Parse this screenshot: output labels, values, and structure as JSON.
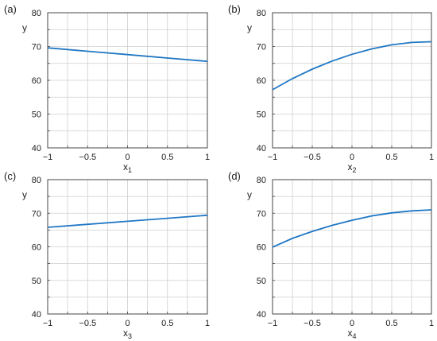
{
  "chart_data": [
    {
      "panel": "(a)",
      "type": "line",
      "xlabel": "x",
      "xlabel_sub": "1",
      "ylabel": "y",
      "xlim": [
        -1,
        1
      ],
      "ylim": [
        40,
        80
      ],
      "xticks": [
        -1,
        -0.5,
        0,
        0.5,
        1
      ],
      "xtick_labels": [
        "−1",
        "−0.5",
        "0",
        "0.5",
        "1"
      ],
      "yticks": [
        40,
        50,
        60,
        70,
        80
      ],
      "ytick_labels": [
        "40",
        "50",
        "60",
        "70",
        "80"
      ],
      "grid": true,
      "series": [
        {
          "color": "#1f77c4",
          "x": [
            -1,
            -0.5,
            0,
            0.5,
            1
          ],
          "y": [
            69.6,
            68.6,
            67.6,
            66.6,
            65.6
          ]
        }
      ]
    },
    {
      "panel": "(b)",
      "type": "line",
      "xlabel": "x",
      "xlabel_sub": "2",
      "ylabel": "y",
      "xlim": [
        -1,
        1
      ],
      "ylim": [
        40,
        80
      ],
      "xticks": [
        -1,
        -0.5,
        0,
        0.5,
        1
      ],
      "xtick_labels": [
        "−1",
        "−0.5",
        "0",
        "0.5",
        "1"
      ],
      "yticks": [
        40,
        50,
        60,
        70,
        80
      ],
      "ytick_labels": [
        "40",
        "50",
        "60",
        "70",
        "80"
      ],
      "grid": true,
      "series": [
        {
          "color": "#1f77c4",
          "x": [
            -1,
            -0.75,
            -0.5,
            -0.25,
            0,
            0.25,
            0.5,
            0.75,
            1
          ],
          "y": [
            57.2,
            60.5,
            63.3,
            65.7,
            67.7,
            69.3,
            70.5,
            71.2,
            71.4
          ]
        }
      ]
    },
    {
      "panel": "(c)",
      "type": "line",
      "xlabel": "x",
      "xlabel_sub": "3",
      "ylabel": "y",
      "xlim": [
        -1,
        1
      ],
      "ylim": [
        40,
        80
      ],
      "xticks": [
        -1,
        -0.5,
        0,
        0.5,
        1
      ],
      "xtick_labels": [
        "−1",
        "−0.5",
        "0",
        "0.5",
        "1"
      ],
      "yticks": [
        40,
        50,
        60,
        70,
        80
      ],
      "ytick_labels": [
        "40",
        "50",
        "60",
        "70",
        "80"
      ],
      "grid": true,
      "series": [
        {
          "color": "#1f77c4",
          "x": [
            -1,
            -0.5,
            0,
            0.5,
            1
          ],
          "y": [
            65.8,
            66.7,
            67.6,
            68.5,
            69.4
          ]
        }
      ]
    },
    {
      "panel": "(d)",
      "type": "line",
      "xlabel": "x",
      "xlabel_sub": "4",
      "ylabel": "y",
      "xlim": [
        -1,
        1
      ],
      "ylim": [
        40,
        80
      ],
      "xticks": [
        -1,
        -0.5,
        0,
        0.5,
        1
      ],
      "xtick_labels": [
        "−1",
        "−0.5",
        "0",
        "0.5",
        "1"
      ],
      "yticks": [
        40,
        50,
        60,
        70,
        80
      ],
      "ytick_labels": [
        "40",
        "50",
        "60",
        "70",
        "80"
      ],
      "grid": true,
      "series": [
        {
          "color": "#1f77c4",
          "x": [
            -1,
            -0.75,
            -0.5,
            -0.25,
            0,
            0.25,
            0.5,
            0.75,
            1
          ],
          "y": [
            59.9,
            62.5,
            64.6,
            66.4,
            67.9,
            69.2,
            70.1,
            70.7,
            71.0
          ]
        }
      ]
    }
  ]
}
